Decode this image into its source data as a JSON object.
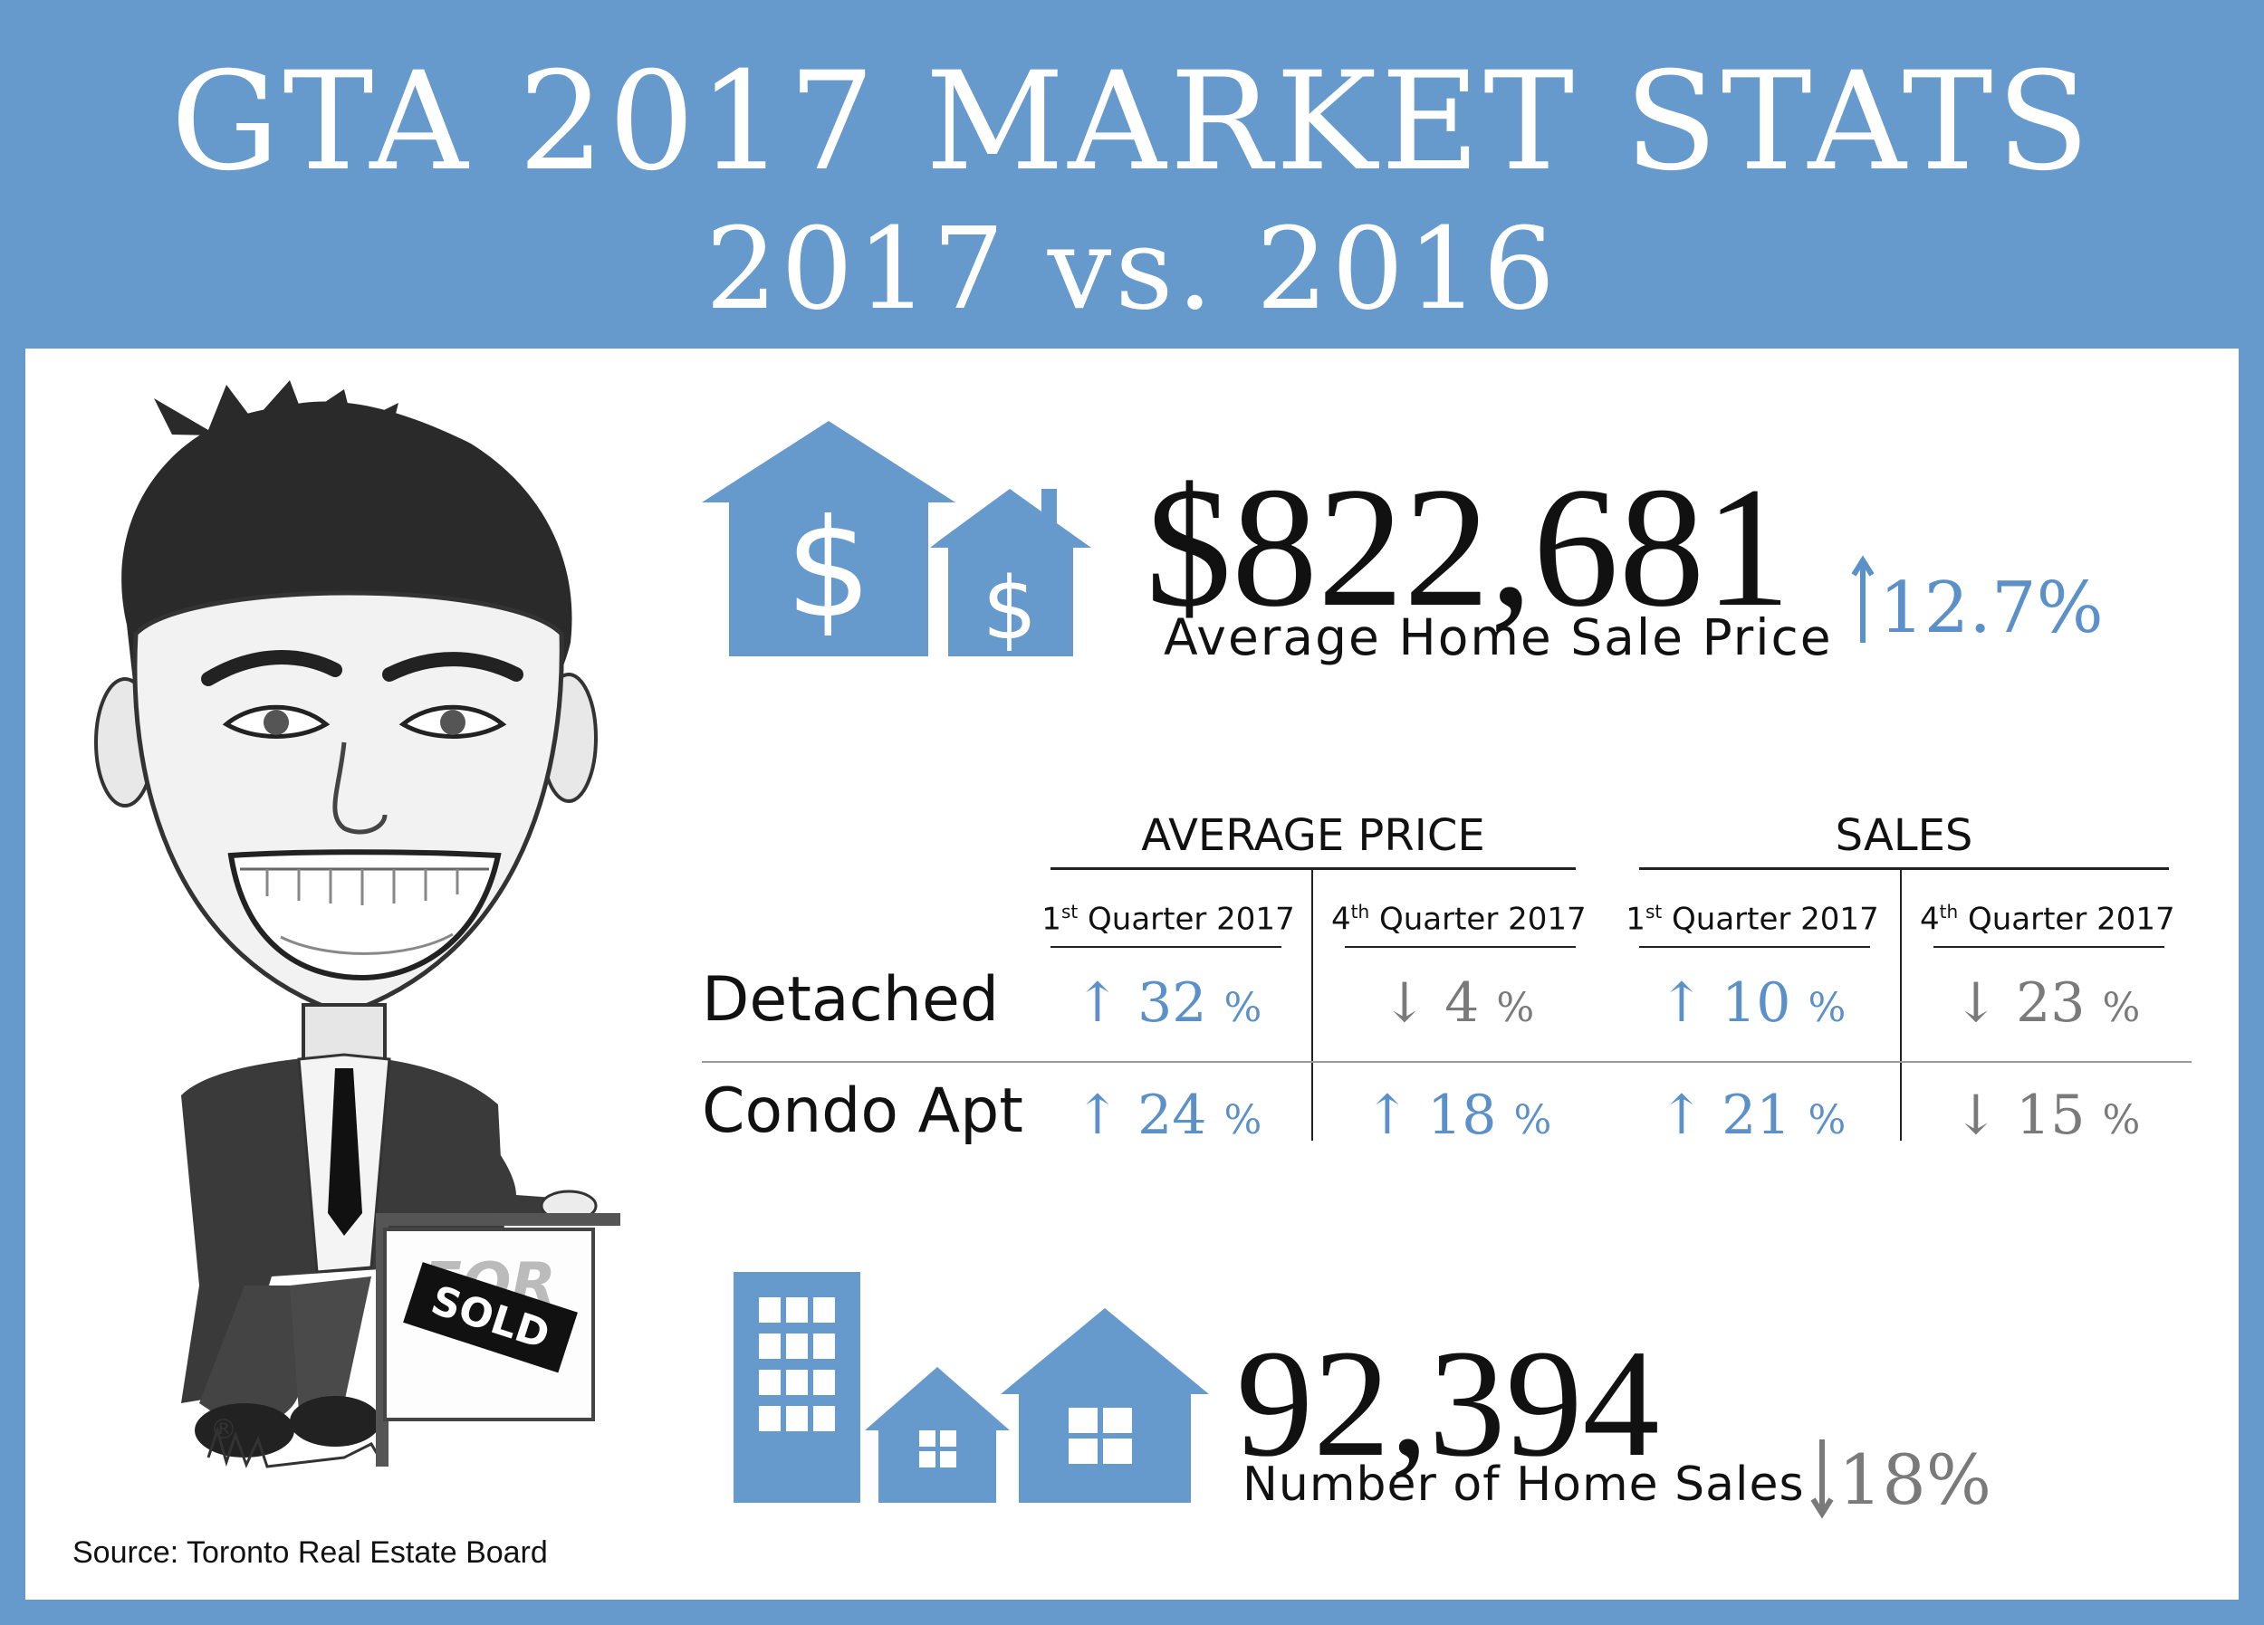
{
  "header": {
    "title": "GTA 2017 MARKET STATS",
    "subtitle": "2017  vs.  2016"
  },
  "price": {
    "value": "$822,681",
    "label": "Average Home Sale Price",
    "change": "12.7%",
    "direction": "up"
  },
  "table": {
    "groups": [
      {
        "label": "AVERAGE PRICE",
        "columns": [
          {
            "ord": "1",
            "sup": "st",
            "rest": " Quarter 2017"
          },
          {
            "ord": "4",
            "sup": "th",
            "rest": " Quarter 2017"
          }
        ]
      },
      {
        "label": "SALES",
        "columns": [
          {
            "ord": "1",
            "sup": "st",
            "rest": " Quarter 2017"
          },
          {
            "ord": "4",
            "sup": "th",
            "rest": " Quarter 2017"
          }
        ]
      }
    ],
    "rows": [
      {
        "label": "Detached",
        "cells": [
          {
            "arrow": "↑",
            "value": "32",
            "unit": "%",
            "direction": "up"
          },
          {
            "arrow": "↓",
            "value": " 4",
            "unit": "%",
            "direction": "down"
          },
          {
            "arrow": "↑",
            "value": "10",
            "unit": "%",
            "direction": "up"
          },
          {
            "arrow": "↓",
            "value": "23",
            "unit": "%",
            "direction": "down"
          }
        ]
      },
      {
        "label": "Condo Apt",
        "cells": [
          {
            "arrow": "↑",
            "value": "24",
            "unit": "%",
            "direction": "up"
          },
          {
            "arrow": "↑",
            "value": "18",
            "unit": "%",
            "direction": "up"
          },
          {
            "arrow": "↑",
            "value": "21",
            "unit": "%",
            "direction": "up"
          },
          {
            "arrow": "↓",
            "value": "15",
            "unit": "%",
            "direction": "down"
          }
        ]
      }
    ]
  },
  "sales": {
    "value": "92,394",
    "label": "Number of Home Sales",
    "change": "18%",
    "direction": "down"
  },
  "source": "Source: Toronto Real Estate Board",
  "sign": {
    "for_sale": "FOR SALE",
    "sold": "SOLD"
  },
  "registered": "®",
  "colors": {
    "background": "#6699cc",
    "accent": "#5b90c9",
    "down": "#7a7a7a",
    "text": "#111111"
  },
  "icons": {
    "price": "houses-dollar-icon",
    "sales": "buildings-houses-icon",
    "up": "arrow-up-icon",
    "down": "arrow-down-icon"
  }
}
